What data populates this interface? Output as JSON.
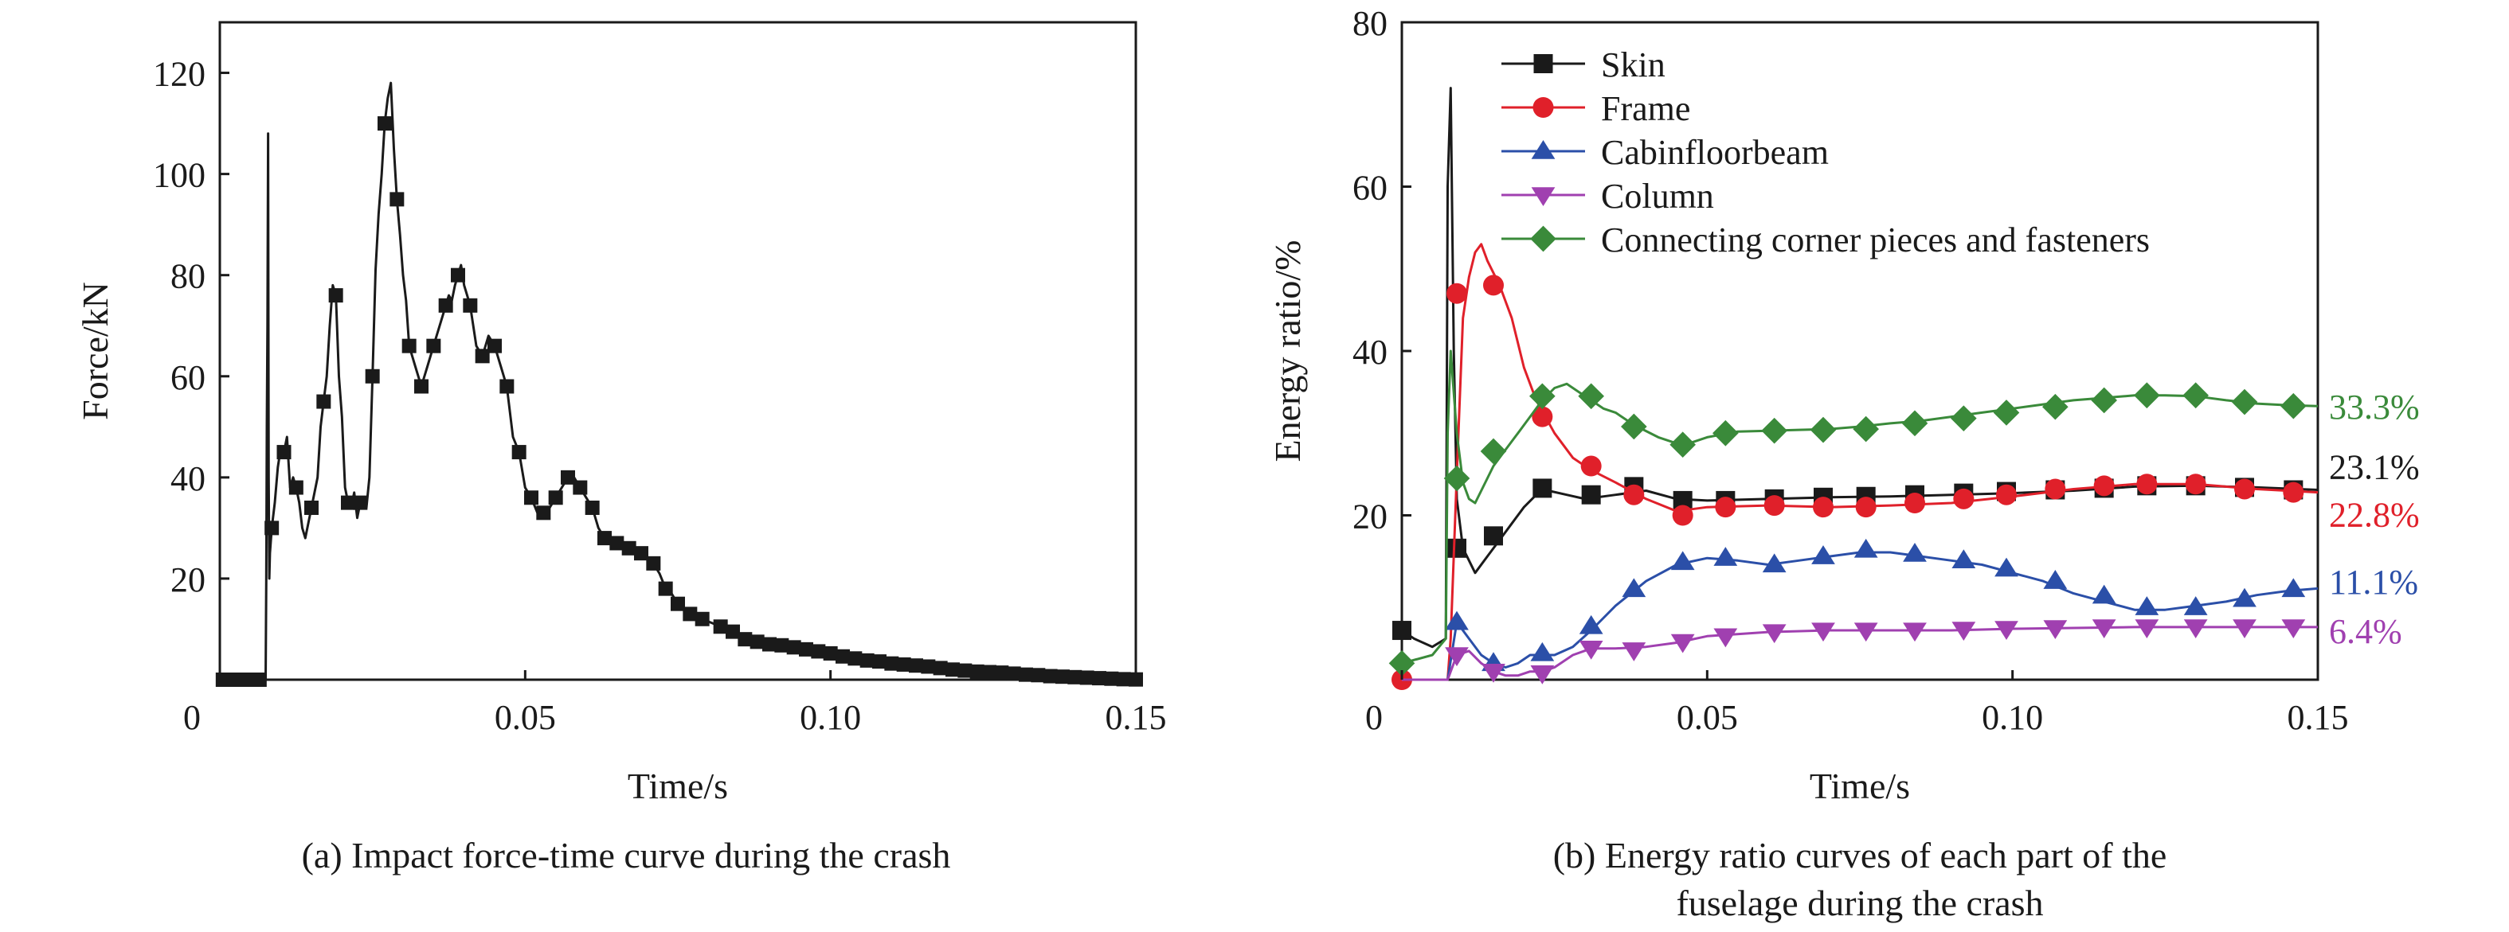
{
  "chart_data": [
    {
      "type": "line",
      "caption": "(a) Impact force-time curve during the crash",
      "xlabel": "Time/s",
      "ylabel": "Force/kN",
      "xlim": [
        0,
        0.15
      ],
      "ylim": [
        0,
        130
      ],
      "xticks": [
        0,
        0.05,
        0.1,
        0.15
      ],
      "xtick_labels": [
        "0",
        "0.05",
        "0.10",
        "0.15"
      ],
      "yticks": [
        20,
        40,
        60,
        80,
        100,
        120
      ],
      "ytick_labels": [
        "20",
        "40",
        "60",
        "80",
        "100",
        "120"
      ],
      "grid": false,
      "series": [
        {
          "color": "#1a1a1a",
          "marker": "square",
          "x": [
            0,
            0.0075,
            0.0076,
            0.0077,
            0.0078,
            0.0079,
            0.008,
            0.0081,
            0.0082,
            0.0085,
            0.009,
            0.0095,
            0.01,
            0.0105,
            0.011,
            0.0115,
            0.012,
            0.0125,
            0.013,
            0.0135,
            0.014,
            0.015,
            0.016,
            0.0165,
            0.017,
            0.0175,
            0.018,
            0.0185,
            0.019,
            0.0195,
            0.02,
            0.0205,
            0.021,
            0.0215,
            0.022,
            0.0225,
            0.023,
            0.0235,
            0.024,
            0.0245,
            0.025,
            0.0255,
            0.026,
            0.0265,
            0.027,
            0.0275,
            0.028,
            0.0285,
            0.029,
            0.0295,
            0.03,
            0.0305,
            0.031,
            0.032,
            0.033,
            0.034,
            0.035,
            0.036,
            0.037,
            0.0375,
            0.038,
            0.0385,
            0.039,
            0.0395,
            0.04,
            0.0405,
            0.041,
            0.042,
            0.043,
            0.044,
            0.045,
            0.046,
            0.047,
            0.048,
            0.049,
            0.05,
            0.051,
            0.052,
            0.053,
            0.054,
            0.055,
            0.056,
            0.057,
            0.058,
            0.059,
            0.06,
            0.061,
            0.062,
            0.063,
            0.064,
            0.065,
            0.066,
            0.067,
            0.068,
            0.069,
            0.07,
            0.071,
            0.072,
            0.073,
            0.074,
            0.075,
            0.076,
            0.077,
            0.078,
            0.079,
            0.08,
            0.082,
            0.084,
            0.086,
            0.088,
            0.09,
            0.092,
            0.094,
            0.096,
            0.098,
            0.1,
            0.102,
            0.104,
            0.106,
            0.108,
            0.11,
            0.112,
            0.114,
            0.116,
            0.118,
            0.12,
            0.122,
            0.124,
            0.126,
            0.128,
            0.13,
            0.132,
            0.134,
            0.136,
            0.138,
            0.14,
            0.142,
            0.144,
            0.146,
            0.148,
            0.15
          ],
          "y": [
            0,
            0,
            20,
            50,
            70,
            108,
            40,
            20,
            25,
            30,
            35,
            42,
            46,
            45,
            48,
            38,
            40,
            38,
            35,
            30,
            28,
            34,
            40,
            50,
            55,
            60,
            70,
            78,
            76,
            60,
            52,
            38,
            35,
            34,
            37,
            32,
            35,
            36,
            34,
            40,
            60,
            81,
            92,
            100,
            110,
            115,
            118,
            105,
            95,
            88,
            80,
            75,
            66,
            62,
            58,
            62,
            66,
            70,
            74,
            76,
            75,
            78,
            80,
            82,
            78,
            76,
            74,
            66,
            64,
            68,
            66,
            62,
            58,
            48,
            45,
            38,
            36,
            33,
            33,
            34,
            36,
            38,
            40,
            40,
            38,
            36,
            34,
            30,
            28,
            28,
            27,
            27,
            26,
            25,
            25,
            24,
            23,
            21,
            18,
            17,
            15,
            14,
            13,
            12,
            12,
            11.5,
            10.5,
            9.5,
            8,
            7.5,
            7,
            6.8,
            6.4,
            6,
            5.6,
            5.2,
            4.6,
            4.2,
            3.8,
            3.6,
            3.2,
            3,
            2.8,
            2.6,
            2.3,
            2,
            1.8,
            1.6,
            1.5,
            1.4,
            1.2,
            1,
            0.9,
            0.7,
            0.6,
            0.5,
            0.4,
            0.3,
            0.2,
            0.1,
            0.05
          ]
        }
      ]
    },
    {
      "type": "line",
      "caption_lines": [
        "(b) Energy ratio curves of each part of the",
        "fuselage during the crash"
      ],
      "xlabel": "Time/s",
      "ylabel": "Energy ratio/%",
      "xlim": [
        0,
        0.15
      ],
      "ylim": [
        0,
        80
      ],
      "xticks": [
        0,
        0.05,
        0.1,
        0.15
      ],
      "xtick_labels": [
        "0",
        "0.05",
        "0.10",
        "0.15"
      ],
      "yticks": [
        20,
        40,
        60,
        80
      ],
      "ytick_labels": [
        "20",
        "40",
        "60",
        "80"
      ],
      "grid": false,
      "legend_position": "top-left",
      "annotations": [
        {
          "text": "33.3%",
          "y": 33.3,
          "color": "#3a8a3a"
        },
        {
          "text": "23.1%",
          "y": 26.0,
          "color": "#1a1a1a"
        },
        {
          "text": "22.8%",
          "y": 20.2,
          "color": "#e0202a"
        },
        {
          "text": "11.1%",
          "y": 12.0,
          "color": "#2b4fa8"
        },
        {
          "text": "6.4%",
          "y": 6.0,
          "color": "#a040b0"
        }
      ],
      "series": [
        {
          "name": "Skin",
          "color": "#1a1a1a",
          "marker": "square",
          "x": [
            0,
            0.002,
            0.005,
            0.0072,
            0.0075,
            0.008,
            0.0085,
            0.009,
            0.01,
            0.012,
            0.014,
            0.016,
            0.018,
            0.02,
            0.022,
            0.024,
            0.027,
            0.03,
            0.035,
            0.04,
            0.045,
            0.05,
            0.06,
            0.07,
            0.08,
            0.09,
            0.1,
            0.11,
            0.12,
            0.13,
            0.14,
            0.15
          ],
          "y": [
            6,
            5,
            4,
            5,
            60,
            72,
            40,
            22,
            16,
            13,
            15,
            17,
            19,
            21,
            22.5,
            23,
            22.5,
            22,
            22.5,
            23,
            22,
            21.8,
            22,
            22.2,
            22.3,
            22.5,
            22.7,
            23,
            23.5,
            23.6,
            23.4,
            23.1
          ],
          "marker_x": [
            0,
            0.009,
            0.015,
            0.023,
            0.031,
            0.038,
            0.046,
            0.053,
            0.061,
            0.069,
            0.076,
            0.084,
            0.092,
            0.099,
            0.107,
            0.115,
            0.122,
            0.13,
            0.138,
            0.146
          ],
          "marker_y": [
            6,
            16,
            17.5,
            23.3,
            22.5,
            23.5,
            21.8,
            21.8,
            22,
            22.2,
            22.3,
            22.5,
            22.7,
            22.9,
            23.1,
            23.3,
            23.6,
            23.6,
            23.4,
            23.1
          ]
        },
        {
          "name": "Frame",
          "color": "#e0202a",
          "marker": "circle",
          "x": [
            0,
            0.005,
            0.0075,
            0.008,
            0.009,
            0.01,
            0.011,
            0.012,
            0.013,
            0.014,
            0.016,
            0.018,
            0.02,
            0.022,
            0.025,
            0.028,
            0.031,
            0.035,
            0.04,
            0.045,
            0.05,
            0.06,
            0.07,
            0.08,
            0.09,
            0.1,
            0.11,
            0.12,
            0.13,
            0.14,
            0.15
          ],
          "y": [
            0,
            0,
            0,
            5,
            25,
            44,
            49,
            52,
            53,
            51,
            48,
            44,
            38,
            34,
            30,
            27,
            25.5,
            24,
            22,
            20.5,
            21,
            21.2,
            21,
            21.2,
            21.5,
            22.3,
            23.2,
            23.8,
            23.8,
            23.2,
            22.8
          ],
          "marker_x": [
            0,
            0.009,
            0.015,
            0.023,
            0.031,
            0.038,
            0.046,
            0.053,
            0.061,
            0.069,
            0.076,
            0.084,
            0.092,
            0.099,
            0.107,
            0.115,
            0.122,
            0.13,
            0.138,
            0.146
          ],
          "marker_y": [
            0,
            47,
            48,
            32,
            26,
            22.5,
            20,
            21,
            21.2,
            21,
            21,
            21.5,
            22,
            22.5,
            23.2,
            23.6,
            23.8,
            23.8,
            23.2,
            22.8
          ]
        },
        {
          "name": "Cabinfloorbeam",
          "color": "#2b4fa8",
          "marker": "triangle-up",
          "x": [
            0,
            0.005,
            0.0075,
            0.009,
            0.011,
            0.013,
            0.015,
            0.017,
            0.019,
            0.021,
            0.023,
            0.025,
            0.028,
            0.031,
            0.035,
            0.04,
            0.045,
            0.05,
            0.055,
            0.06,
            0.065,
            0.07,
            0.075,
            0.08,
            0.085,
            0.09,
            0.095,
            0.1,
            0.105,
            0.11,
            0.115,
            0.12,
            0.125,
            0.13,
            0.135,
            0.14,
            0.145,
            0.15
          ],
          "y": [
            0,
            0,
            0,
            7,
            5,
            3,
            2,
            1.5,
            2,
            3,
            3,
            3,
            4,
            6,
            9,
            12,
            14,
            14.8,
            14.5,
            14,
            14.5,
            15,
            15.5,
            15.5,
            15,
            14.5,
            14,
            13,
            12,
            10.5,
            9.5,
            8.5,
            8.5,
            9,
            9.5,
            10.3,
            10.8,
            11.1
          ],
          "marker_x": [
            0.009,
            0.015,
            0.023,
            0.031,
            0.038,
            0.046,
            0.053,
            0.061,
            0.069,
            0.076,
            0.084,
            0.092,
            0.099,
            0.107,
            0.115,
            0.122,
            0.13,
            0.138,
            0.146
          ],
          "marker_y": [
            7,
            2,
            3.2,
            6.5,
            11,
            14.3,
            14.8,
            14,
            15,
            15.8,
            15.3,
            14.5,
            13.5,
            12,
            10.2,
            8.8,
            8.8,
            9.8,
            11
          ]
        },
        {
          "name": "Column",
          "color": "#a040b0",
          "marker": "triangle-down",
          "x": [
            0,
            0.0075,
            0.009,
            0.011,
            0.013,
            0.015,
            0.017,
            0.019,
            0.021,
            0.023,
            0.025,
            0.028,
            0.031,
            0.035,
            0.04,
            0.045,
            0.05,
            0.06,
            0.07,
            0.08,
            0.09,
            0.1,
            0.11,
            0.12,
            0.13,
            0.14,
            0.15
          ],
          "y": [
            0,
            0,
            3,
            3.5,
            2,
            1,
            0.5,
            0.5,
            1,
            1,
            1.5,
            3,
            3.8,
            3.8,
            4,
            4.5,
            5.3,
            5.8,
            6,
            6,
            6,
            6.2,
            6.3,
            6.4,
            6.4,
            6.4,
            6.4
          ],
          "marker_x": [
            0.009,
            0.015,
            0.023,
            0.031,
            0.038,
            0.046,
            0.053,
            0.061,
            0.069,
            0.076,
            0.084,
            0.092,
            0.099,
            0.107,
            0.115,
            0.122,
            0.13,
            0.138,
            0.146
          ],
          "marker_y": [
            3,
            1,
            0.8,
            3.8,
            3.6,
            4.6,
            5.3,
            5.8,
            6,
            6,
            6,
            6.1,
            6.2,
            6.3,
            6.4,
            6.4,
            6.4,
            6.4,
            6.4
          ]
        },
        {
          "name": "Connecting corner pieces and fasteners",
          "color": "#3a8a3a",
          "marker": "diamond",
          "x": [
            0,
            0.005,
            0.0072,
            0.0075,
            0.008,
            0.009,
            0.01,
            0.011,
            0.012,
            0.013,
            0.015,
            0.017,
            0.019,
            0.021,
            0.023,
            0.025,
            0.027,
            0.029,
            0.031,
            0.033,
            0.035,
            0.038,
            0.042,
            0.046,
            0.05,
            0.055,
            0.06,
            0.065,
            0.07,
            0.075,
            0.08,
            0.085,
            0.09,
            0.095,
            0.1,
            0.105,
            0.11,
            0.115,
            0.12,
            0.125,
            0.13,
            0.135,
            0.14,
            0.145,
            0.15
          ],
          "y": [
            2,
            3,
            5,
            30,
            40,
            30,
            24,
            22,
            21.5,
            23,
            26,
            28,
            30,
            32,
            34,
            35.5,
            36,
            35,
            34,
            33,
            32.5,
            31,
            29.5,
            28.5,
            29.5,
            30.2,
            30.3,
            30.4,
            30.5,
            30.8,
            31.2,
            31.5,
            32,
            32.5,
            33,
            33.5,
            34,
            34.3,
            34.6,
            34.6,
            34.5,
            34,
            33.6,
            33.4,
            33.3
          ],
          "marker_x": [
            0,
            0.009,
            0.015,
            0.023,
            0.031,
            0.038,
            0.046,
            0.053,
            0.061,
            0.069,
            0.076,
            0.084,
            0.092,
            0.099,
            0.107,
            0.115,
            0.122,
            0.13,
            0.138,
            0.146
          ],
          "marker_y": [
            2,
            24.5,
            27.8,
            34.5,
            34.5,
            30.8,
            28.6,
            30,
            30.3,
            30.4,
            30.5,
            31.2,
            31.8,
            32.5,
            33.2,
            34,
            34.6,
            34.6,
            33.8,
            33.3
          ]
        }
      ]
    }
  ]
}
